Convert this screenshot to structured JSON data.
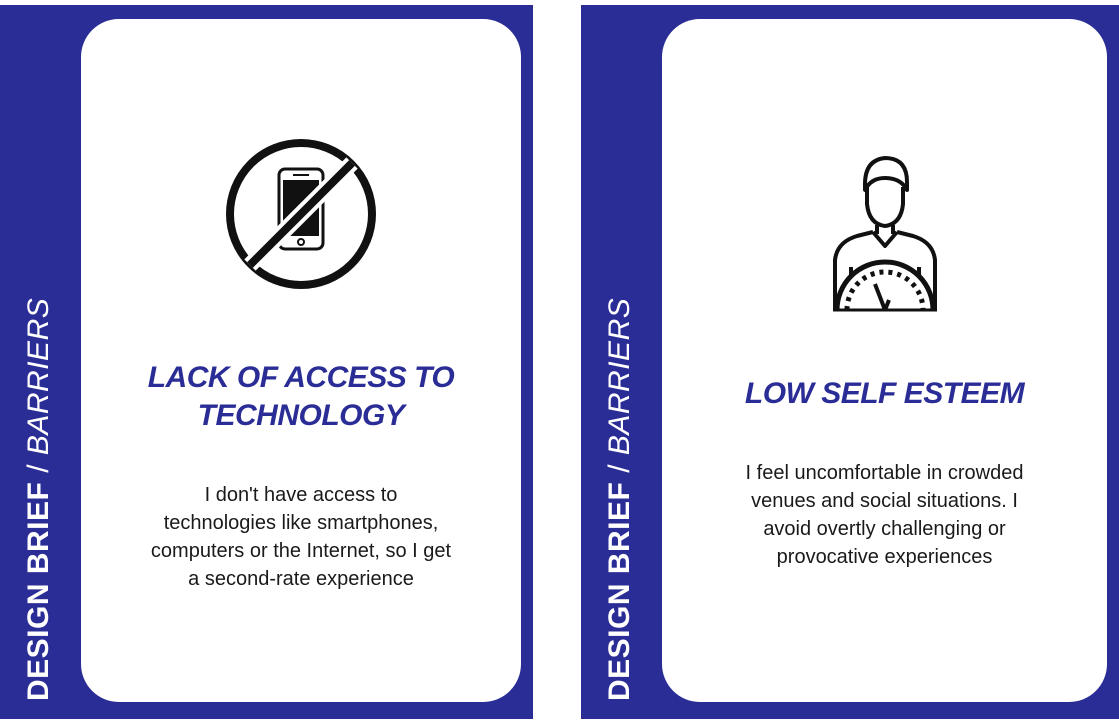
{
  "cards": [
    {
      "side_label_bold": "DESIGN BRIEF",
      "side_label_sep": " / ",
      "side_label_italic": "BARRIERS",
      "icon": "no-smartphone-icon",
      "title_line1": "LACK OF ACCESS TO",
      "title_line2": "TECHNOLOGY",
      "body_line1": "I don't have access to",
      "body_line2": "technologies like smartphones,",
      "body_line3": "computers or the Internet, so I get",
      "body_line4": "a second-rate experience"
    },
    {
      "side_label_bold": "DESIGN BRIEF",
      "side_label_sep": " / ",
      "side_label_italic": "BARRIERS",
      "icon": "person-gauge-icon",
      "title_line1": "LOW SELF ESTEEM",
      "body_line1": "I feel uncomfortable in crowded",
      "body_line2": "venues and social situations. I",
      "body_line3": "avoid overtly challenging or",
      "body_line4": "provocative experiences"
    }
  ],
  "colors": {
    "card_background": "#2b2d96",
    "title": "#2b2d96",
    "panel": "#ffffff"
  }
}
